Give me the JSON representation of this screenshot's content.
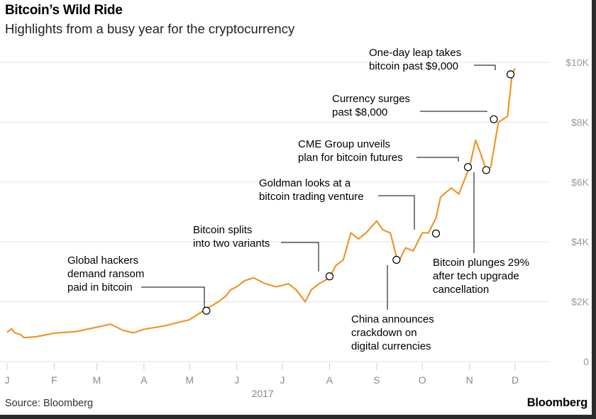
{
  "title": "Bitcoin’s Wild Ride",
  "subtitle": "Highlights from a busy year for the cryptocurrency",
  "source": "Source: Bloomberg",
  "brand": "Bloomberg",
  "colors": {
    "line": "#f0952a",
    "grid": "#e3e3e3",
    "annotation": "#000000"
  },
  "chart_data": {
    "type": "line",
    "x_axis": {
      "ticks": [
        "J",
        "F",
        "M",
        "A",
        "M",
        "J",
        "J",
        "A",
        "S",
        "O",
        "N",
        "D"
      ],
      "year_label": "2017"
    },
    "y_axis": {
      "range": [
        0,
        10500
      ],
      "ticks": [
        0,
        2000,
        4000,
        6000,
        8000,
        10000
      ],
      "tick_labels": [
        "0",
        "$2K",
        "$4K",
        "$6K",
        "$8K",
        "$10K"
      ]
    },
    "grid": true,
    "series": [
      {
        "x": [
          "2017-01-01",
          "2017-01-04",
          "2017-01-06",
          "2017-01-10",
          "2017-01-12",
          "2017-01-20",
          "2017-02-01",
          "2017-02-15",
          "2017-03-01",
          "2017-03-10",
          "2017-03-18",
          "2017-03-25",
          "2017-04-01",
          "2017-04-15",
          "2017-05-01",
          "2017-05-10",
          "2017-05-20",
          "2017-05-25",
          "2017-05-28",
          "2017-06-01",
          "2017-06-06",
          "2017-06-12",
          "2017-06-20",
          "2017-06-27",
          "2017-07-05",
          "2017-07-10",
          "2017-07-16",
          "2017-07-20",
          "2017-07-25",
          "2017-08-01",
          "2017-08-05",
          "2017-08-10",
          "2017-08-15",
          "2017-08-20",
          "2017-08-25",
          "2017-09-01",
          "2017-09-05",
          "2017-09-10",
          "2017-09-15",
          "2017-09-20",
          "2017-09-25",
          "2017-10-01",
          "2017-10-05",
          "2017-10-10",
          "2017-10-13",
          "2017-10-20",
          "2017-10-25",
          "2017-11-01",
          "2017-11-05",
          "2017-11-08",
          "2017-11-12",
          "2017-11-15",
          "2017-11-20",
          "2017-11-26",
          "2017-11-29",
          "2017-12-01"
        ],
        "y": [
          980,
          1100,
          960,
          900,
          800,
          830,
          950,
          1000,
          1150,
          1250,
          1050,
          960,
          1080,
          1200,
          1400,
          1700,
          2000,
          2200,
          2400,
          2500,
          2700,
          2800,
          2600,
          2500,
          2600,
          2400,
          2000,
          2400,
          2600,
          2800,
          3200,
          3400,
          4300,
          4100,
          4300,
          4700,
          4400,
          4300,
          3300,
          3800,
          3700,
          4300,
          4300,
          4800,
          5500,
          5800,
          5600,
          6500,
          7400,
          7000,
          6400,
          6500,
          8000,
          8200,
          9600,
          9800
        ]
      }
    ],
    "annotations": [
      {
        "lines": [
          "Global hackers",
          "demand ransom",
          "paid in bitcoin"
        ],
        "date": "2017-05-12",
        "value": 1700
      },
      {
        "lines": [
          "Bitcoin splits",
          "into two variants"
        ],
        "date": "2017-08-01",
        "value": 2850
      },
      {
        "lines": [
          "Goldman looks at a",
          "bitcoin trading venture"
        ],
        "date": "2017-10-10",
        "value": 4280
      },
      {
        "lines": [
          "CME Group unveils",
          "plan for bitcoin futures"
        ],
        "date": "2017-10-31",
        "value": 6500
      },
      {
        "lines": [
          "Currency surges",
          "past $8,000"
        ],
        "date": "2017-11-17",
        "value": 8100
      },
      {
        "lines": [
          "One-day leap takes",
          "bitcoin past $9,000"
        ],
        "date": "2017-11-28",
        "value": 9600
      },
      {
        "lines": [
          "China announces",
          "crackdown on",
          "digital currencies"
        ],
        "date": "2017-09-14",
        "value": 3400
      },
      {
        "lines": [
          "Bitcoin plunges 29%",
          "after tech upgrade",
          "cancellation"
        ],
        "date": "2017-11-12",
        "value": 6400
      }
    ]
  }
}
